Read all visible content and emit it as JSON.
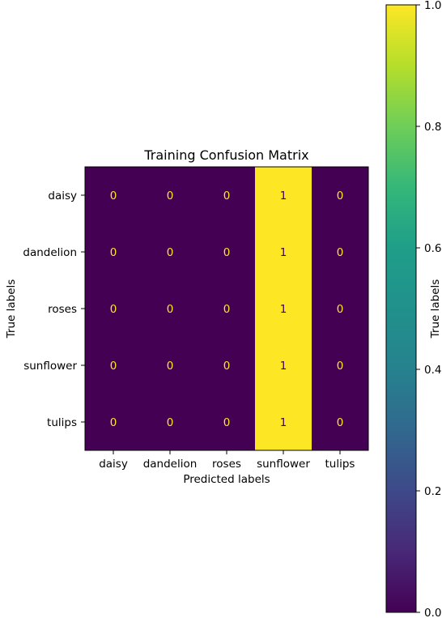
{
  "chart_data": {
    "type": "heatmap",
    "title": "Training Confusion Matrix",
    "xlabel": "Predicted labels",
    "ylabel": "True labels",
    "x_categories": [
      "daisy",
      "dandelion",
      "roses",
      "sunflower",
      "tulips"
    ],
    "y_categories": [
      "daisy",
      "dandelion",
      "roses",
      "sunflower",
      "tulips"
    ],
    "values": [
      [
        0,
        0,
        0,
        1,
        0
      ],
      [
        0,
        0,
        0,
        1,
        0
      ],
      [
        0,
        0,
        0,
        1,
        0
      ],
      [
        0,
        0,
        0,
        1,
        0
      ],
      [
        0,
        0,
        0,
        1,
        0
      ]
    ],
    "colorbar": {
      "label": "True labels",
      "range": [
        0.0,
        1.0
      ],
      "ticks": [
        "0.0",
        "0.2",
        "0.4",
        "0.6",
        "0.8",
        "1.0"
      ],
      "colormap": "viridis"
    },
    "colors": {
      "low": "#440154",
      "high": "#fde725",
      "text_on_low": "#fde725",
      "text_on_high": "#440154"
    }
  }
}
